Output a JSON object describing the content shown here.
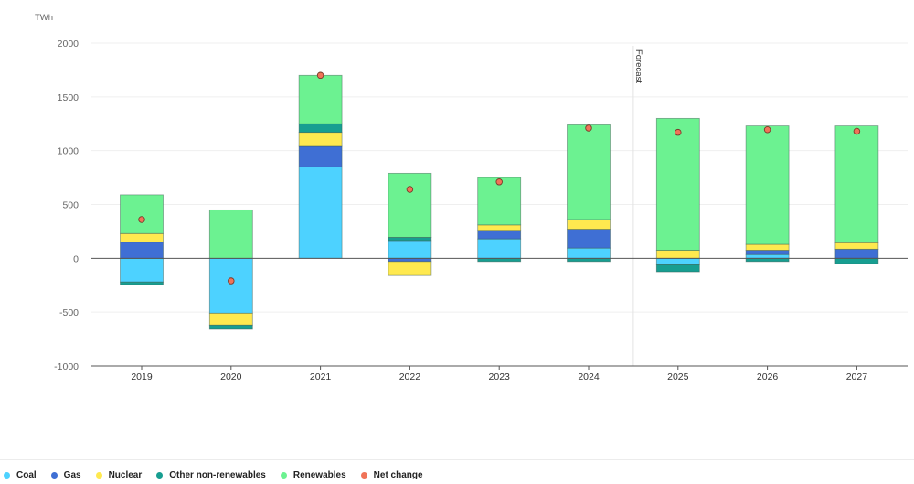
{
  "chart_data": {
    "type": "bar",
    "stacked": true,
    "title": "",
    "xlabel": "",
    "ylabel": "TWh",
    "ylim": [
      -1000,
      2000
    ],
    "yticks": [
      2000,
      1500,
      1000,
      500,
      0,
      -500,
      -1000
    ],
    "ytick_labels": [
      "2000",
      "1500",
      "1000",
      "500",
      "0",
      "-500",
      "-1000"
    ],
    "grid": true,
    "categories": [
      "2019",
      "2020",
      "2021",
      "2022",
      "2023",
      "2024",
      "2025",
      "2026",
      "2027"
    ],
    "forecast_annotation": {
      "label": "Forecast",
      "starts_after": "2024"
    },
    "series": [
      {
        "name": "Coal",
        "color": "#4dd2ff",
        "values": [
          -220,
          -510,
          850,
          165,
          180,
          95,
          -60,
          35,
          0
        ]
      },
      {
        "name": "Gas",
        "color": "#3f6fd4",
        "values": [
          150,
          0,
          190,
          -30,
          80,
          175,
          0,
          40,
          85
        ]
      },
      {
        "name": "Nuclear",
        "color": "#ffe94f",
        "values": [
          80,
          -110,
          130,
          -130,
          50,
          90,
          75,
          55,
          60
        ]
      },
      {
        "name": "Other non-renewables",
        "color": "#179e91",
        "values": [
          -25,
          -40,
          80,
          30,
          -30,
          -30,
          -65,
          -30,
          -50
        ]
      },
      {
        "name": "Renewables",
        "color": "#6cf291",
        "values": [
          360,
          450,
          450,
          595,
          440,
          880,
          1225,
          1100,
          1085
        ]
      }
    ],
    "net_change": {
      "name": "Net change",
      "color": "#f07358",
      "values": [
        360,
        -210,
        1700,
        640,
        710,
        1210,
        1170,
        1195,
        1180
      ]
    },
    "legend": {
      "position": "bottom-left",
      "entries": [
        {
          "name": "Coal",
          "color": "#4dd2ff",
          "marker": "dot"
        },
        {
          "name": "Gas",
          "color": "#3f6fd4",
          "marker": "dot"
        },
        {
          "name": "Nuclear",
          "color": "#ffe94f",
          "marker": "dot"
        },
        {
          "name": "Other non-renewables",
          "color": "#179e91",
          "marker": "dot"
        },
        {
          "name": "Renewables",
          "color": "#6cf291",
          "marker": "dot"
        },
        {
          "name": "Net change",
          "color": "#f07358",
          "marker": "dot"
        }
      ]
    }
  }
}
